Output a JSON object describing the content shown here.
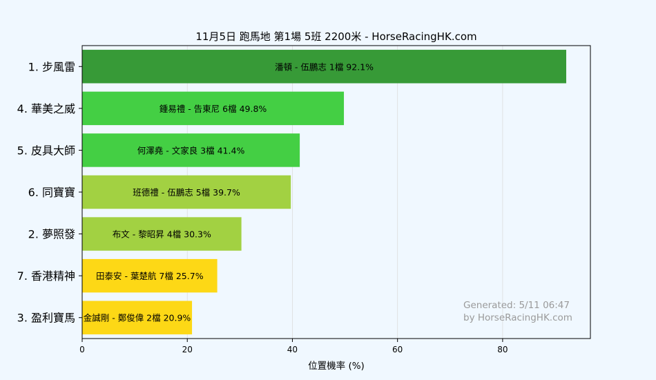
{
  "chart_data": {
    "type": "bar",
    "orientation": "horizontal",
    "title": "11月5日  跑馬地  第1場  5班  2200米 - HorseRacingHK.com",
    "xlabel": "位置機率 (%)",
    "ylabel": "",
    "xlim": [
      0,
      96.7
    ],
    "xticks": [
      0,
      20,
      40,
      60,
      80
    ],
    "grid": "vertical",
    "categories": [
      "1. 步風雷",
      "4. 華美之威",
      "5. 皮具大師",
      "6. 同寶寶",
      "2. 夢照發",
      "7. 香港精神",
      "3. 盈利寶馬"
    ],
    "values": [
      92.1,
      49.8,
      41.4,
      39.7,
      30.3,
      25.7,
      20.9
    ],
    "bar_labels": [
      "潘頓 - 伍鵬志 1檔  92.1%",
      "鍾易禮 - 告東尼 6檔  49.8%",
      "何澤堯 - 文家良 3檔  41.4%",
      "班德禮 - 伍鵬志 5檔  39.7%",
      "布文 - 黎昭昇 4檔  30.3%",
      "田泰安 - 葉楚航 7檔  25.7%",
      "金誠剛 - 鄭俊偉 2檔  20.9%"
    ],
    "bar_colors": [
      "#379a37",
      "#44cf44",
      "#44cf44",
      "#a2d142",
      "#a2d142",
      "#fdd816",
      "#fdd816"
    ],
    "watermark": [
      "Generated: 5/11 06:47",
      "by HorseRacingHK.com"
    ]
  }
}
